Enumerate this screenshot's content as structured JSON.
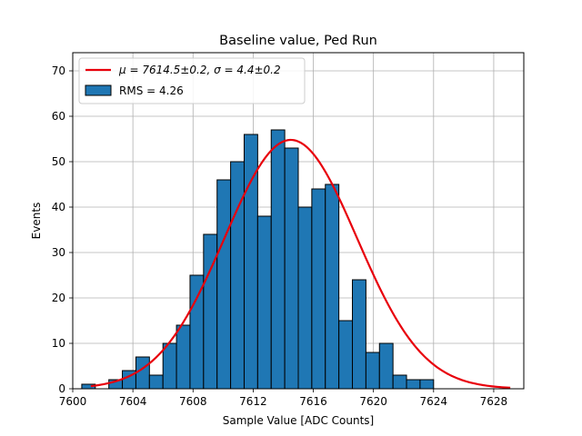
{
  "chart_data": {
    "type": "bar",
    "title": "Baseline value, Ped Run",
    "xlabel": "Sample Value [ADC Counts]",
    "ylabel": "Events",
    "xlim": [
      7600,
      7630
    ],
    "ylim": [
      0,
      74
    ],
    "grid": true,
    "legend_placement": "top-left",
    "x_ticks": [
      7600,
      7604,
      7608,
      7612,
      7616,
      7620,
      7624,
      7628
    ],
    "y_ticks": [
      0,
      10,
      20,
      30,
      40,
      50,
      60,
      70
    ],
    "bin_start": 7600.6,
    "bin_width": 0.9,
    "values": [
      1,
      0,
      2,
      4,
      7,
      3,
      10,
      14,
      25,
      34,
      46,
      50,
      56,
      38,
      57,
      53,
      40,
      44,
      45,
      15,
      24,
      8,
      10,
      3,
      2,
      2
    ],
    "histogram_legend": "RMS = 4.26",
    "fit": {
      "mu": 7614.5,
      "sigma": 4.4,
      "amplitude": 54.8,
      "x_from": 7601.2,
      "x_to": 7629.1,
      "legend": "μ = 7614.5±0.2, σ = 4.4±0.2",
      "color": "#e8000b"
    },
    "bar_color": "#1f77b4",
    "bar_edge": "#000000"
  }
}
